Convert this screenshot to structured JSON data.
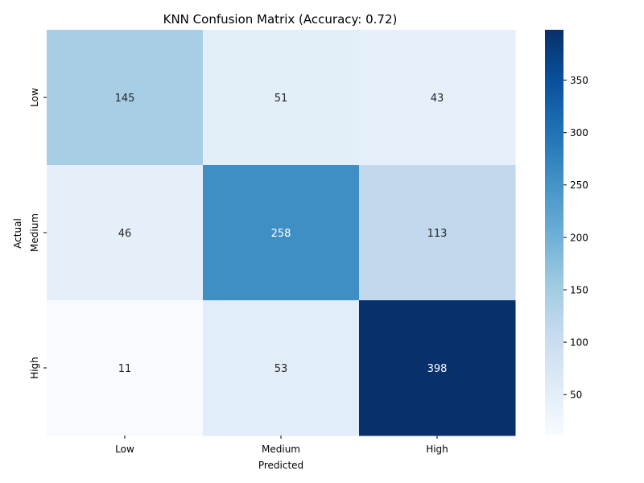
{
  "chart_data": {
    "type": "heatmap",
    "title": "KNN Confusion Matrix (Accuracy: 0.72)",
    "xlabel": "Predicted",
    "ylabel": "Actual",
    "x_categories": [
      "Low",
      "Medium",
      "High"
    ],
    "y_categories": [
      "Low",
      "Medium",
      "High"
    ],
    "matrix": [
      [
        145,
        51,
        43
      ],
      [
        46,
        258,
        113
      ],
      [
        11,
        53,
        398
      ]
    ],
    "colormap": "Blues",
    "colorbar": {
      "vmin": 11,
      "vmax": 398,
      "ticks": [
        50,
        100,
        150,
        200,
        250,
        300,
        350
      ]
    },
    "grid": false,
    "legend": "none"
  }
}
